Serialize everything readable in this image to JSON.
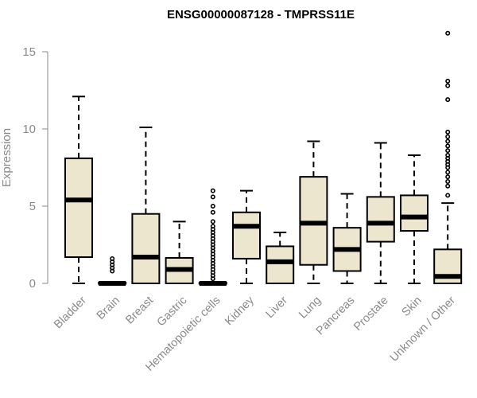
{
  "chart_data": {
    "type": "boxplot",
    "title": "ENSG00000087128 - TMPRSS11E",
    "xlabel": "",
    "ylabel": "Expression",
    "ylim": [
      0,
      16.5
    ],
    "yticks": [
      0,
      5,
      10,
      15
    ],
    "grid": false,
    "legend": "none",
    "box_fill": "#ede6cf",
    "categories": [
      "Bladder",
      "Brain",
      "Breast",
      "Gastric",
      "Hematopoietic cells",
      "Kidney",
      "Liver",
      "Lung",
      "Pancreas",
      "Prostate",
      "Skin",
      "Unknown / Other"
    ],
    "boxes": [
      {
        "name": "Bladder",
        "min": 0,
        "q1": 1.7,
        "median": 5.4,
        "q3": 8.1,
        "max": 12.1,
        "outliers": []
      },
      {
        "name": "Brain",
        "min": 0,
        "q1": 0,
        "median": 0,
        "q3": 0.05,
        "max": 0.1,
        "outliers": [
          0.8,
          1.0,
          1.2,
          1.4,
          1.6
        ]
      },
      {
        "name": "Breast",
        "min": 0,
        "q1": 0,
        "median": 1.7,
        "q3": 4.5,
        "max": 10.1,
        "outliers": []
      },
      {
        "name": "Gastric",
        "min": 0,
        "q1": 0,
        "median": 0.9,
        "q3": 1.65,
        "max": 4.0,
        "outliers": []
      },
      {
        "name": "Hematopoietic cells",
        "min": 0,
        "q1": 0,
        "median": 0,
        "q3": 0.05,
        "max": 0.1,
        "outliers": [
          0.3,
          0.5,
          0.7,
          0.9,
          1.1,
          1.3,
          1.5,
          1.7,
          1.9,
          2.1,
          2.3,
          2.5,
          2.7,
          2.9,
          3.1,
          3.3,
          3.5,
          3.7,
          4.0,
          4.6,
          5.0,
          5.6,
          6.0
        ]
      },
      {
        "name": "Kidney",
        "min": 0,
        "q1": 1.6,
        "median": 3.7,
        "q3": 4.6,
        "max": 6.0,
        "outliers": []
      },
      {
        "name": "Liver",
        "min": 0,
        "q1": 0,
        "median": 1.4,
        "q3": 2.4,
        "max": 3.3,
        "outliers": []
      },
      {
        "name": "Lung",
        "min": 0,
        "q1": 1.2,
        "median": 3.9,
        "q3": 6.9,
        "max": 9.2,
        "outliers": []
      },
      {
        "name": "Pancreas",
        "min": 0,
        "q1": 0.8,
        "median": 2.2,
        "q3": 3.6,
        "max": 5.8,
        "outliers": []
      },
      {
        "name": "Prostate",
        "min": 0,
        "q1": 2.7,
        "median": 3.9,
        "q3": 5.6,
        "max": 9.1,
        "outliers": []
      },
      {
        "name": "Skin",
        "min": 0,
        "q1": 3.4,
        "median": 4.3,
        "q3": 5.7,
        "max": 8.3,
        "outliers": []
      },
      {
        "name": "Unknown / Other",
        "min": 0,
        "q1": 0,
        "median": 0.45,
        "q3": 2.2,
        "max": 5.2,
        "outliers": [
          5.7,
          6.3,
          6.6,
          6.9,
          7.2,
          7.5,
          7.7,
          7.9,
          8.1,
          8.3,
          8.6,
          8.9,
          9.2,
          9.5,
          9.8,
          11.9,
          12.8,
          13.1,
          16.2
        ]
      }
    ]
  }
}
